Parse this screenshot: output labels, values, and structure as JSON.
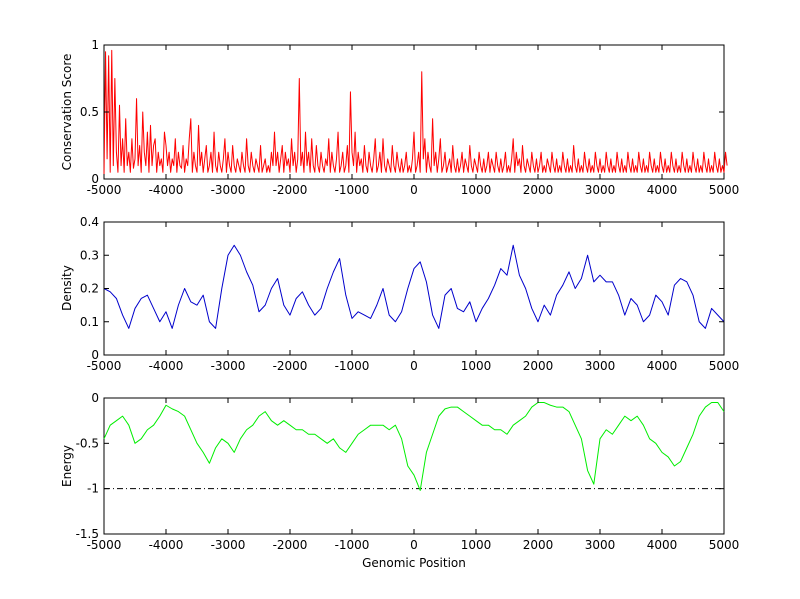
{
  "chart_data": [
    {
      "type": "line",
      "ylabel": "Conservation Score",
      "xlim": [
        -5000,
        5000
      ],
      "ylim": [
        0,
        1
      ],
      "x_ticks": [
        -5000,
        -4000,
        -3000,
        -2000,
        -1000,
        0,
        1000,
        2000,
        3000,
        4000,
        5000
      ],
      "x_tick_labels": [
        "-5000",
        "-4000",
        "-3000",
        "-2000",
        "-1000",
        "0",
        "1000",
        "2000",
        "3000",
        "4000",
        "5000"
      ],
      "y_ticks": [
        0,
        0.5,
        1
      ],
      "y_tick_labels": [
        "0",
        "0.5",
        "1"
      ],
      "grid": false,
      "series": [
        {
          "color": "#ff0000",
          "step": 25,
          "x_start": -5000,
          "values": [
            0.02,
            0.95,
            0.15,
            0.92,
            0.05,
            0.96,
            0.1,
            0.75,
            0.2,
            0.05,
            0.55,
            0.1,
            0.3,
            0.05,
            0.45,
            0.1,
            0.2,
            0.05,
            0.3,
            0.08,
            0.15,
            0.6,
            0.1,
            0.25,
            0.05,
            0.5,
            0.2,
            0.1,
            0.35,
            0.05,
            0.4,
            0.1,
            0.25,
            0.3,
            0.05,
            0.2,
            0.1,
            0.15,
            0.05,
            0.35,
            0.25,
            0.1,
            0.2,
            0.05,
            0.15,
            0.1,
            0.3,
            0.05,
            0.2,
            0.1,
            0.08,
            0.25,
            0.05,
            0.15,
            0.1,
            0.3,
            0.45,
            0.05,
            0.2,
            0.1,
            0.05,
            0.4,
            0.1,
            0.2,
            0.05,
            0.15,
            0.25,
            0.05,
            0.1,
            0.2,
            0.05,
            0.35,
            0.1,
            0.05,
            0.2,
            0.1,
            0.05,
            0.15,
            0.3,
            0.05,
            0.2,
            0.1,
            0.05,
            0.25,
            0.1,
            0.05,
            0.15,
            0.1,
            0.05,
            0.2,
            0.1,
            0.05,
            0.3,
            0.1,
            0.05,
            0.2,
            0.1,
            0.05,
            0.15,
            0.1,
            0.05,
            0.25,
            0.05,
            0.1,
            0.15,
            0.05,
            0.1,
            0.05,
            0.2,
            0.1,
            0.35,
            0.1,
            0.2,
            0.05,
            0.15,
            0.25,
            0.05,
            0.2,
            0.1,
            0.15,
            0.05,
            0.3,
            0.1,
            0.2,
            0.05,
            0.15,
            0.75,
            0.1,
            0.2,
            0.05,
            0.35,
            0.1,
            0.2,
            0.05,
            0.3,
            0.1,
            0.05,
            0.25,
            0.1,
            0.05,
            0.2,
            0.1,
            0.05,
            0.15,
            0.1,
            0.3,
            0.05,
            0.2,
            0.1,
            0.05,
            0.15,
            0.35,
            0.05,
            0.1,
            0.2,
            0.05,
            0.1,
            0.25,
            0.05,
            0.65,
            0.2,
            0.1,
            0.35,
            0.05,
            0.2,
            0.1,
            0.15,
            0.05,
            0.25,
            0.1,
            0.05,
            0.2,
            0.1,
            0.05,
            0.15,
            0.3,
            0.05,
            0.1,
            0.2,
            0.05,
            0.3,
            0.1,
            0.05,
            0.15,
            0.1,
            0.05,
            0.25,
            0.1,
            0.05,
            0.2,
            0.1,
            0.05,
            0.15,
            0.05,
            0.1,
            0.2,
            0.05,
            0.1,
            0.05,
            0.15,
            0.35,
            0.05,
            0.1,
            0.2,
            0.05,
            0.8,
            0.15,
            0.3,
            0.05,
            0.2,
            0.1,
            0.05,
            0.45,
            0.1,
            0.2,
            0.05,
            0.15,
            0.3,
            0.05,
            0.1,
            0.2,
            0.05,
            0.1,
            0.15,
            0.05,
            0.25,
            0.1,
            0.05,
            0.15,
            0.05,
            0.1,
            0.2,
            0.05,
            0.15,
            0.1,
            0.05,
            0.25,
            0.1,
            0.05,
            0.15,
            0.1,
            0.05,
            0.2,
            0.1,
            0.05,
            0.15,
            0.05,
            0.1,
            0.2,
            0.05,
            0.15,
            0.1,
            0.05,
            0.2,
            0.1,
            0.05,
            0.15,
            0.05,
            0.1,
            0.2,
            0.05,
            0.1,
            0.05,
            0.15,
            0.3,
            0.05,
            0.2,
            0.1,
            0.15,
            0.05,
            0.25,
            0.1,
            0.05,
            0.15,
            0.1,
            0.05,
            0.2,
            0.1,
            0.05,
            0.15,
            0.05,
            0.1,
            0.2,
            0.05,
            0.1,
            0.05,
            0.15,
            0.1,
            0.05,
            0.2,
            0.1,
            0.05,
            0.15,
            0.05,
            0.1,
            0.05,
            0.2,
            0.1,
            0.05,
            0.15,
            0.05,
            0.1,
            0.05,
            0.25,
            0.1,
            0.05,
            0.15,
            0.05,
            0.1,
            0.05,
            0.2,
            0.1,
            0.05,
            0.15,
            0.05,
            0.1,
            0.05,
            0.2,
            0.1,
            0.05,
            0.15,
            0.05,
            0.1,
            0.05,
            0.2,
            0.1,
            0.05,
            0.15,
            0.05,
            0.1,
            0.05,
            0.2,
            0.1,
            0.05,
            0.15,
            0.05,
            0.1,
            0.05,
            0.2,
            0.1,
            0.05,
            0.15,
            0.05,
            0.1,
            0.05,
            0.2,
            0.1,
            0.05,
            0.15,
            0.05,
            0.1,
            0.05,
            0.2,
            0.1,
            0.05,
            0.15,
            0.05,
            0.1,
            0.05,
            0.2,
            0.1,
            0.05,
            0.15,
            0.05,
            0.1,
            0.05,
            0.2,
            0.1,
            0.05,
            0.15,
            0.05,
            0.1,
            0.05,
            0.2,
            0.1,
            0.05,
            0.15,
            0.05,
            0.1,
            0.05,
            0.2,
            0.1,
            0.05,
            0.15,
            0.05,
            0.1,
            0.05,
            0.2,
            0.1,
            0.05,
            0.15,
            0.05,
            0.1,
            0.05,
            0.2,
            0.1,
            0.05,
            0.15,
            0.05,
            0.1,
            0.05,
            0.2,
            0.1
          ]
        }
      ]
    },
    {
      "type": "line",
      "ylabel": "Density",
      "xlim": [
        -5000,
        5000
      ],
      "ylim": [
        0,
        0.4
      ],
      "x_ticks": [
        -5000,
        -4000,
        -3000,
        -2000,
        -1000,
        0,
        1000,
        2000,
        3000,
        4000,
        5000
      ],
      "x_tick_labels": [
        "-5000",
        "-4000",
        "-3000",
        "-2000",
        "-1000",
        "0",
        "1000",
        "2000",
        "3000",
        "4000",
        "5000"
      ],
      "y_ticks": [
        0,
        0.1,
        0.2,
        0.3,
        0.4
      ],
      "y_tick_labels": [
        "0",
        "0.1",
        "0.2",
        "0.3",
        "0.4"
      ],
      "grid": false,
      "series": [
        {
          "color": "#0000cc",
          "x": [
            -5000,
            -4900,
            -4800,
            -4700,
            -4600,
            -4500,
            -4400,
            -4300,
            -4200,
            -4100,
            -4000,
            -3900,
            -3800,
            -3700,
            -3600,
            -3500,
            -3400,
            -3300,
            -3200,
            -3100,
            -3000,
            -2900,
            -2800,
            -2700,
            -2600,
            -2500,
            -2400,
            -2300,
            -2200,
            -2100,
            -2000,
            -1900,
            -1800,
            -1700,
            -1600,
            -1500,
            -1400,
            -1300,
            -1200,
            -1100,
            -1000,
            -900,
            -800,
            -700,
            -600,
            -500,
            -400,
            -300,
            -200,
            -100,
            0,
            100,
            200,
            300,
            400,
            500,
            600,
            700,
            800,
            900,
            1000,
            1100,
            1200,
            1300,
            1400,
            1500,
            1600,
            1700,
            1800,
            1900,
            2000,
            2100,
            2200,
            2300,
            2400,
            2500,
            2600,
            2700,
            2800,
            2900,
            3000,
            3100,
            3200,
            3300,
            3400,
            3500,
            3600,
            3700,
            3800,
            3900,
            4000,
            4100,
            4200,
            4300,
            4400,
            4500,
            4600,
            4700,
            4800,
            4900,
            5000
          ],
          "values": [
            0.2,
            0.19,
            0.17,
            0.12,
            0.08,
            0.14,
            0.17,
            0.18,
            0.14,
            0.1,
            0.13,
            0.08,
            0.15,
            0.2,
            0.16,
            0.15,
            0.18,
            0.1,
            0.08,
            0.2,
            0.3,
            0.33,
            0.3,
            0.25,
            0.21,
            0.13,
            0.15,
            0.2,
            0.23,
            0.15,
            0.12,
            0.17,
            0.19,
            0.15,
            0.12,
            0.14,
            0.2,
            0.25,
            0.29,
            0.18,
            0.11,
            0.13,
            0.12,
            0.11,
            0.15,
            0.2,
            0.12,
            0.1,
            0.13,
            0.2,
            0.26,
            0.28,
            0.22,
            0.12,
            0.08,
            0.18,
            0.2,
            0.14,
            0.13,
            0.16,
            0.1,
            0.14,
            0.17,
            0.21,
            0.26,
            0.24,
            0.33,
            0.24,
            0.2,
            0.14,
            0.1,
            0.15,
            0.12,
            0.18,
            0.21,
            0.25,
            0.2,
            0.23,
            0.3,
            0.22,
            0.24,
            0.22,
            0.22,
            0.18,
            0.12,
            0.17,
            0.15,
            0.1,
            0.12,
            0.18,
            0.16,
            0.12,
            0.21,
            0.23,
            0.22,
            0.18,
            0.1,
            0.08,
            0.14,
            0.12,
            0.1
          ]
        }
      ]
    },
    {
      "type": "line",
      "ylabel": "Energy",
      "xlabel": "Genomic Position",
      "xlim": [
        -5000,
        5000
      ],
      "ylim": [
        -1.5,
        0
      ],
      "x_ticks": [
        -5000,
        -4000,
        -3000,
        -2000,
        -1000,
        0,
        1000,
        2000,
        3000,
        4000,
        5000
      ],
      "x_tick_labels": [
        "-5000",
        "-4000",
        "-3000",
        "-2000",
        "-1000",
        "0",
        "1000",
        "2000",
        "3000",
        "4000",
        "5000"
      ],
      "y_ticks": [
        -1.5,
        -1,
        -0.5,
        0
      ],
      "y_tick_labels": [
        "-1.5",
        "-1",
        "-0.5",
        "0"
      ],
      "grid": false,
      "reference_line": {
        "y": -1,
        "color": "#000000",
        "style": "dash-dot"
      },
      "series": [
        {
          "color": "#00ee00",
          "x": [
            -5000,
            -4900,
            -4800,
            -4700,
            -4600,
            -4500,
            -4400,
            -4300,
            -4200,
            -4100,
            -4000,
            -3900,
            -3800,
            -3700,
            -3600,
            -3500,
            -3400,
            -3300,
            -3200,
            -3100,
            -3000,
            -2900,
            -2800,
            -2700,
            -2600,
            -2500,
            -2400,
            -2300,
            -2200,
            -2100,
            -2000,
            -1900,
            -1800,
            -1700,
            -1600,
            -1500,
            -1400,
            -1300,
            -1200,
            -1100,
            -1000,
            -900,
            -800,
            -700,
            -600,
            -500,
            -400,
            -300,
            -200,
            -100,
            0,
            100,
            200,
            300,
            400,
            500,
            600,
            700,
            800,
            900,
            1000,
            1100,
            1200,
            1300,
            1400,
            1500,
            1600,
            1700,
            1800,
            1900,
            2000,
            2100,
            2200,
            2300,
            2400,
            2500,
            2600,
            2700,
            2800,
            2900,
            3000,
            3100,
            3200,
            3300,
            3400,
            3500,
            3600,
            3700,
            3800,
            3900,
            4000,
            4100,
            4200,
            4300,
            4400,
            4500,
            4600,
            4700,
            4800,
            4900,
            5000
          ],
          "values": [
            -0.45,
            -0.3,
            -0.25,
            -0.2,
            -0.3,
            -0.5,
            -0.45,
            -0.35,
            -0.3,
            -0.2,
            -0.08,
            -0.12,
            -0.15,
            -0.2,
            -0.35,
            -0.5,
            -0.6,
            -0.72,
            -0.55,
            -0.45,
            -0.5,
            -0.6,
            -0.45,
            -0.35,
            -0.3,
            -0.2,
            -0.15,
            -0.25,
            -0.3,
            -0.25,
            -0.3,
            -0.35,
            -0.35,
            -0.4,
            -0.4,
            -0.45,
            -0.5,
            -0.45,
            -0.55,
            -0.6,
            -0.5,
            -0.4,
            -0.35,
            -0.3,
            -0.3,
            -0.3,
            -0.35,
            -0.3,
            -0.45,
            -0.75,
            -0.85,
            -1.02,
            -0.6,
            -0.4,
            -0.2,
            -0.12,
            -0.1,
            -0.1,
            -0.15,
            -0.2,
            -0.25,
            -0.3,
            -0.3,
            -0.35,
            -0.35,
            -0.4,
            -0.3,
            -0.25,
            -0.2,
            -0.1,
            -0.05,
            -0.05,
            -0.08,
            -0.1,
            -0.1,
            -0.15,
            -0.3,
            -0.45,
            -0.8,
            -0.95,
            -0.45,
            -0.35,
            -0.4,
            -0.3,
            -0.2,
            -0.25,
            -0.2,
            -0.3,
            -0.45,
            -0.5,
            -0.6,
            -0.65,
            -0.75,
            -0.7,
            -0.55,
            -0.4,
            -0.2,
            -0.1,
            -0.05,
            -0.05,
            -0.15
          ]
        }
      ]
    }
  ]
}
